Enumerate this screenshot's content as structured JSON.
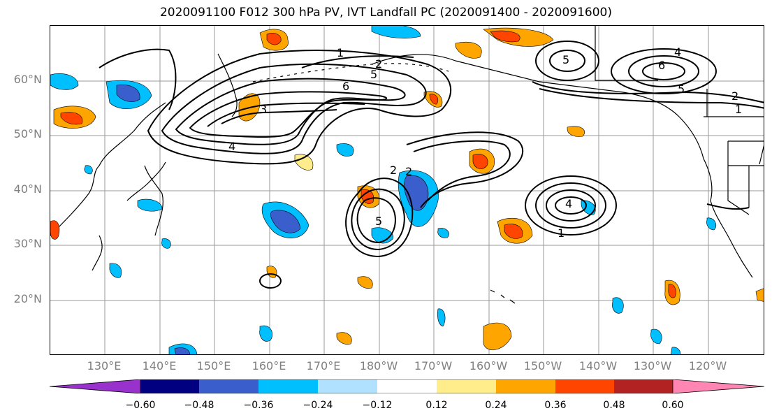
{
  "title": "2020091100 F012 300 hPa PV, IVT Landfall PC (2020091400 - 2020091600)",
  "map": {
    "lat_labels": [
      "60°N",
      "50°N",
      "40°N",
      "30°N",
      "20°N"
    ],
    "lon_labels": [
      "130°E",
      "140°E",
      "150°E",
      "160°E",
      "170°E",
      "180°W",
      "170°W",
      "160°W",
      "150°W",
      "140°W",
      "130°W",
      "120°W"
    ],
    "grid": true
  },
  "contour_labels": [
    "1",
    "2",
    "4",
    "6",
    "5",
    "4",
    "5",
    "6",
    "5",
    "2",
    "1",
    "4",
    "2",
    "5",
    "2",
    "1",
    "3"
  ],
  "colorbar": {
    "tick_labels": [
      "−0.60",
      "−0.48",
      "−0.36",
      "−0.24",
      "−0.12",
      "0.12",
      "0.24",
      "0.36",
      "0.48",
      "0.60"
    ],
    "colors": [
      "#9932CC",
      "#000080",
      "#3A5FCD",
      "#00BFFF",
      "#B0E2FF",
      "#FFFFFF",
      "#FFEC8B",
      "#FFA500",
      "#FF4500",
      "#B22222",
      "#FF86B3"
    ]
  }
}
